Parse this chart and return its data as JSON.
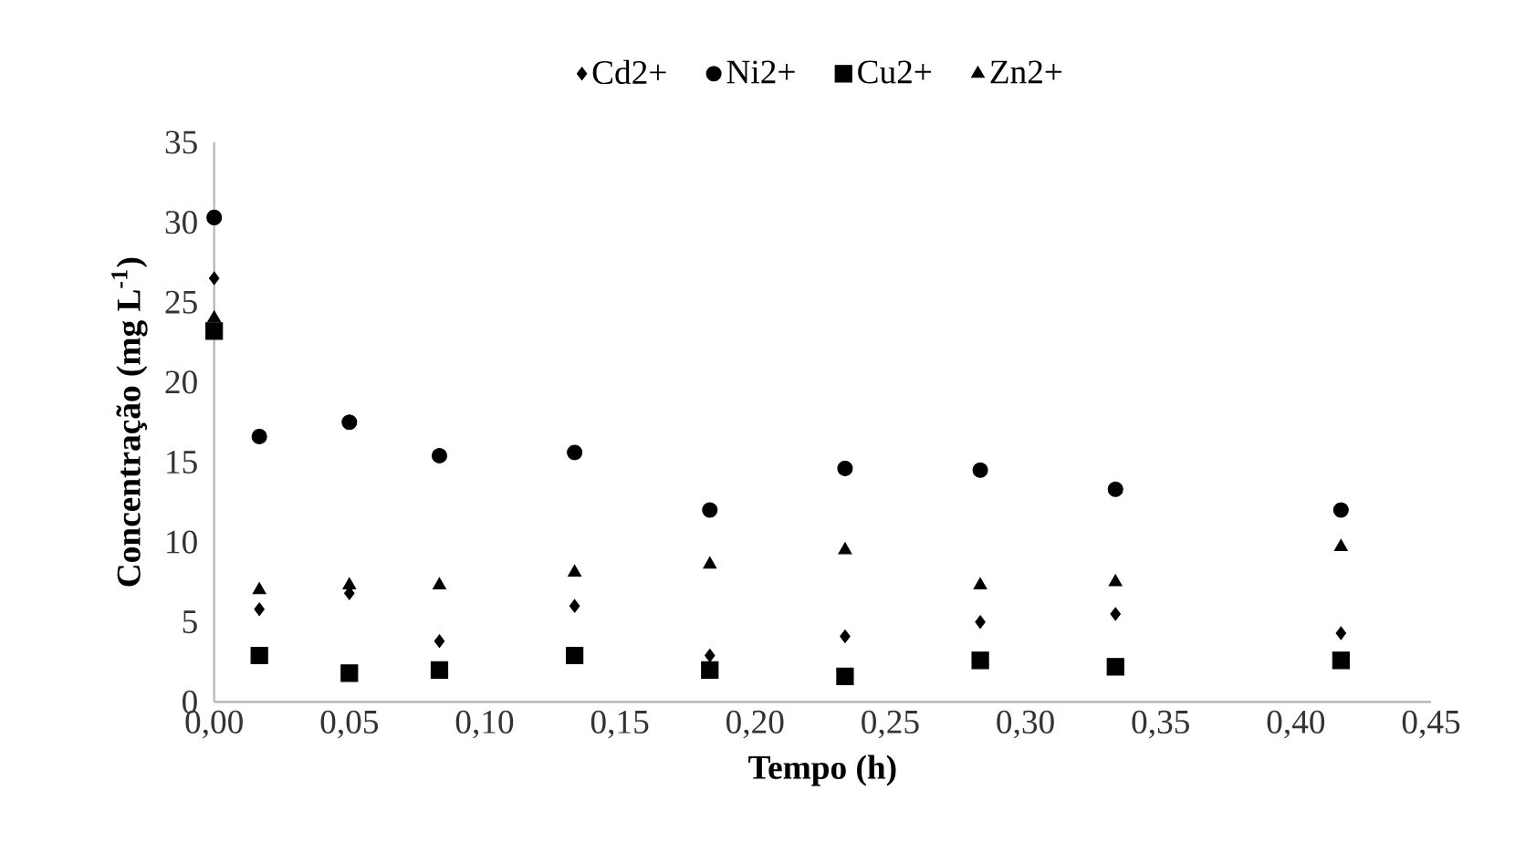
{
  "chart_data": {
    "type": "scatter",
    "xlabel": "Tempo (h)",
    "ylabel": "Concentração (mg L$^{-1}$)",
    "legend": "top",
    "grid": false,
    "xlim": [
      0,
      0.45
    ],
    "ylim": [
      0,
      35
    ],
    "xticks": [
      {
        "value": 0,
        "label": "0,00"
      },
      {
        "value": 0.05,
        "label": "0,05"
      },
      {
        "value": 0.1,
        "label": "0,10"
      },
      {
        "value": 0.15,
        "label": "0,15"
      },
      {
        "value": 0.2,
        "label": "0,20"
      },
      {
        "value": 0.25,
        "label": "0,25"
      },
      {
        "value": 0.3,
        "label": "0,30"
      },
      {
        "value": 0.35,
        "label": "0,35"
      },
      {
        "value": 0.4,
        "label": "0,40"
      },
      {
        "value": 0.45,
        "label": "0,45"
      }
    ],
    "yticks": [
      0,
      5,
      10,
      15,
      20,
      25,
      30,
      35
    ],
    "x": [
      0,
      0.0167,
      0.05,
      0.0833,
      0.1333,
      0.1833,
      0.2333,
      0.2833,
      0.3333,
      0.4167
    ],
    "series": [
      {
        "name": "Cd2+",
        "color": "#000000",
        "marker": "diamond",
        "values": [
          26.5,
          5.8,
          6.8,
          3.8,
          6.0,
          2.9,
          4.1,
          5.0,
          5.5,
          4.3
        ]
      },
      {
        "name": "Ni2+",
        "color": "#000000",
        "marker": "circle",
        "values": [
          30.3,
          16.6,
          17.5,
          15.4,
          15.6,
          12.0,
          14.6,
          14.5,
          13.3,
          12.0
        ]
      },
      {
        "name": "Cu2+",
        "color": "#000000",
        "marker": "square",
        "values": [
          23.2,
          2.9,
          1.8,
          2.0,
          2.9,
          2.0,
          1.6,
          2.6,
          2.2,
          2.6
        ]
      },
      {
        "name": "Zn2+",
        "color": "#000000",
        "marker": "triangle",
        "values": [
          24.0,
          7.0,
          7.3,
          7.3,
          8.1,
          8.6,
          9.5,
          7.3,
          7.5,
          9.7
        ]
      }
    ]
  }
}
